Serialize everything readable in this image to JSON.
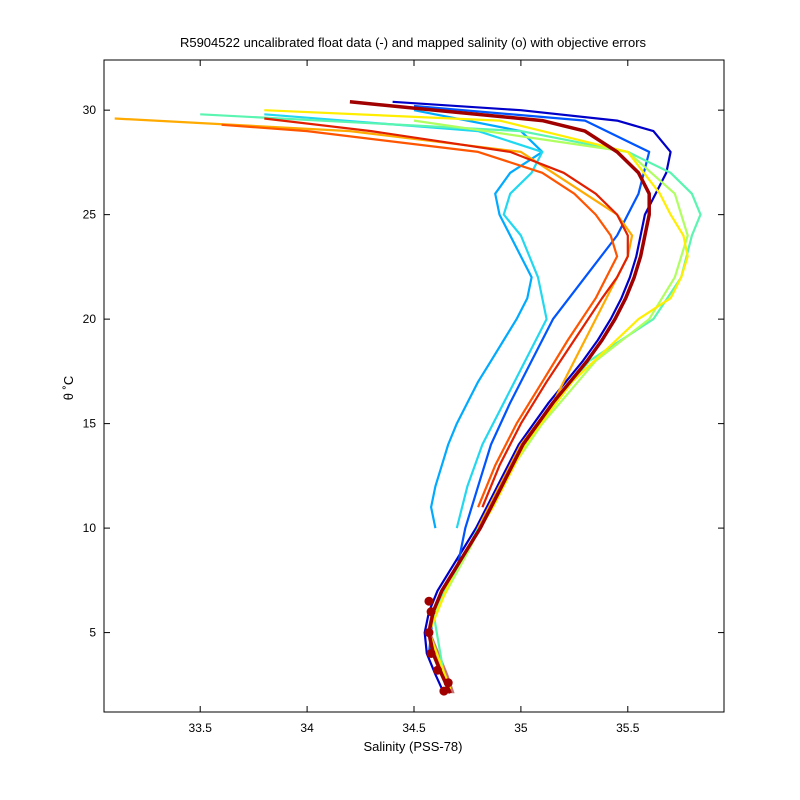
{
  "chart_data": {
    "type": "line",
    "title": "R5904522 uncalibrated float data (-) and mapped salinity (o) with objective errors",
    "xlabel": "Salinity (PSS-78)",
    "ylabel": "θ ˚C",
    "xlim": [
      33.05,
      35.95
    ],
    "ylim": [
      1.2,
      32.4
    ],
    "xticks": [
      33.5,
      34,
      34.5,
      35,
      35.5
    ],
    "yticks": [
      5,
      10,
      15,
      20,
      25,
      30
    ],
    "grid": false,
    "legend": "none",
    "colormap": [
      "#0000c8",
      "#0055ff",
      "#00aaff",
      "#22d8f0",
      "#5af5b0",
      "#b0ff60",
      "#ffee00",
      "#ffaa00",
      "#ff5500",
      "#e02000",
      "#a00000"
    ],
    "envelope": {
      "theta": [
        2.1,
        3.0,
        4.0,
        5.0,
        6.0,
        7.0,
        8.0,
        9.0,
        10.0,
        11.0,
        12.0,
        13.0,
        14.0,
        15.0,
        16.0,
        17.0,
        18.0,
        19.0,
        20.0,
        21.0,
        22.0,
        23.0,
        24.0,
        25.0,
        26.0,
        27.0,
        28.0,
        29.0,
        29.5,
        30.0,
        30.4
      ],
      "s_fresh": [
        34.66,
        34.62,
        34.58,
        34.56,
        34.58,
        34.62,
        34.68,
        34.74,
        34.8,
        34.85,
        34.9,
        34.95,
        35.0,
        35.07,
        35.14,
        35.22,
        35.3,
        35.37,
        35.43,
        35.48,
        35.52,
        35.55,
        35.57,
        35.59,
        35.6,
        35.6,
        35.58,
        35.55,
        35.5,
        35.4,
        35.3
      ],
      "s_salty": [
        34.69,
        34.66,
        34.62,
        34.58,
        34.58,
        34.62,
        34.68,
        34.74,
        34.8,
        34.85,
        34.9,
        34.95,
        35.0,
        35.07,
        35.14,
        35.22,
        35.3,
        35.37,
        35.43,
        35.48,
        35.52,
        35.55,
        35.57,
        35.59,
        35.6,
        35.6,
        35.58,
        35.55,
        35.5,
        35.4,
        35.3
      ]
    },
    "series": [
      {
        "color": "#0000c8",
        "theta": [
          2.1,
          3.0,
          4.0,
          5.0,
          6.0,
          7.0,
          8.0,
          9.0,
          10.0,
          11.0,
          12.0,
          13.0,
          14.0,
          15.0,
          16.0,
          17.0,
          18.0,
          19.0,
          20.0,
          21.0,
          22.0,
          23.0,
          24.0,
          25.0,
          26.0,
          27.0,
          28.0,
          29.0,
          29.5,
          30.0,
          30.4
        ],
        "salinity": [
          34.64,
          34.6,
          34.56,
          34.55,
          34.57,
          34.61,
          34.67,
          34.73,
          34.79,
          34.84,
          34.89,
          34.94,
          34.99,
          35.06,
          35.13,
          35.21,
          35.29,
          35.36,
          35.42,
          35.47,
          35.51,
          35.54,
          35.56,
          35.58,
          35.63,
          35.68,
          35.7,
          35.62,
          35.45,
          35.0,
          34.4
        ]
      },
      {
        "color": "#0055ff",
        "theta": [
          4.0,
          6.0,
          8.0,
          10.0,
          12.0,
          14.0,
          16.0,
          18.0,
          20.0,
          22.0,
          24.0,
          26.0,
          28.0,
          29.5,
          30.2
        ],
        "salinity": [
          34.57,
          34.59,
          34.7,
          34.74,
          34.8,
          34.86,
          34.95,
          35.05,
          35.15,
          35.3,
          35.45,
          35.55,
          35.6,
          35.3,
          34.5
        ]
      },
      {
        "color": "#00aaff",
        "theta": [
          10.0,
          11.0,
          12.0,
          13.0,
          14.0,
          15.0,
          16.0,
          17.0,
          18.0,
          19.0,
          20.0,
          21.0,
          22.0,
          23.0,
          24.0,
          25.0,
          26.0,
          27.0,
          28.0,
          29.0,
          30.0
        ],
        "salinity": [
          34.6,
          34.58,
          34.6,
          34.63,
          34.66,
          34.7,
          34.75,
          34.8,
          34.86,
          34.92,
          34.98,
          35.03,
          35.05,
          35.0,
          34.95,
          34.9,
          34.88,
          34.95,
          35.1,
          35.0,
          34.5
        ]
      },
      {
        "color": "#22d8f0",
        "theta": [
          10.0,
          12.0,
          14.0,
          16.0,
          18.0,
          20.0,
          22.0,
          24.0,
          25.0,
          26.0,
          27.0,
          28.0,
          29.0,
          29.8
        ],
        "salinity": [
          34.7,
          34.75,
          34.82,
          34.92,
          35.02,
          35.12,
          35.08,
          35.0,
          34.92,
          34.95,
          35.05,
          35.1,
          34.8,
          33.8
        ]
      },
      {
        "color": "#5af5b0",
        "theta": [
          3.0,
          6.0,
          9.0,
          12.0,
          15.0,
          18.0,
          20.0,
          22.0,
          24.0,
          25.0,
          26.0,
          27.0,
          28.0,
          29.0,
          29.8
        ],
        "salinity": [
          34.64,
          34.59,
          34.75,
          34.9,
          35.08,
          35.32,
          35.62,
          35.75,
          35.8,
          35.84,
          35.8,
          35.7,
          35.5,
          35.0,
          33.5
        ]
      },
      {
        "color": "#b0ff60",
        "theta": [
          6.0,
          9.0,
          12.0,
          15.0,
          18.0,
          20.0,
          22.0,
          24.0,
          26.0,
          28.0,
          29.5
        ],
        "salinity": [
          34.6,
          34.76,
          34.9,
          35.1,
          35.35,
          35.6,
          35.72,
          35.78,
          35.72,
          35.5,
          34.5
        ]
      },
      {
        "color": "#ffee00",
        "theta": [
          2.3,
          5.0,
          8.0,
          11.0,
          14.0,
          17.0,
          20.0,
          21.0,
          22.0,
          23.0,
          24.0,
          25.0,
          26.0,
          28.0,
          29.5,
          30.0
        ],
        "salinity": [
          34.67,
          34.57,
          34.69,
          34.87,
          35.02,
          35.24,
          35.55,
          35.7,
          35.75,
          35.78,
          35.76,
          35.7,
          35.65,
          35.5,
          34.9,
          33.8
        ]
      },
      {
        "color": "#ffaa00",
        "theta": [
          10.0,
          12.0,
          14.0,
          16.0,
          18.0,
          20.0,
          22.0,
          23.0,
          24.0,
          25.0,
          26.0,
          27.0,
          28.0,
          29.0,
          29.6
        ],
        "salinity": [
          34.8,
          34.9,
          35.0,
          35.15,
          35.25,
          35.35,
          35.45,
          35.5,
          35.52,
          35.45,
          35.3,
          35.15,
          35.0,
          34.2,
          33.1
        ]
      },
      {
        "color": "#ff5500",
        "theta": [
          11.0,
          13.0,
          15.0,
          17.0,
          19.0,
          21.0,
          22.0,
          23.0,
          24.0,
          25.0,
          26.0,
          27.0,
          28.0,
          29.0,
          29.3
        ],
        "salinity": [
          34.8,
          34.88,
          34.98,
          35.1,
          35.22,
          35.35,
          35.4,
          35.45,
          35.42,
          35.35,
          35.25,
          35.1,
          34.8,
          34.0,
          33.6
        ]
      },
      {
        "color": "#e02000",
        "theta": [
          11.0,
          13.0,
          15.0,
          17.0,
          19.0,
          21.0,
          22.0,
          23.0,
          24.0,
          25.0,
          26.0,
          27.0,
          28.0,
          29.0,
          29.6
        ],
        "salinity": [
          34.82,
          34.9,
          35.0,
          35.12,
          35.25,
          35.38,
          35.45,
          35.5,
          35.5,
          35.45,
          35.35,
          35.2,
          34.95,
          34.3,
          33.8
        ]
      },
      {
        "color": "#a00000",
        "theta": [
          2.1,
          3.0,
          4.0,
          5.0,
          6.0,
          7.0,
          8.0,
          9.0,
          10.0,
          11.0,
          12.0,
          13.0,
          14.0,
          15.0,
          16.0,
          17.0,
          18.0,
          19.0,
          20.0,
          21.0,
          22.0,
          23.0,
          24.0,
          25.0,
          26.0,
          27.0,
          28.0,
          29.0,
          29.5,
          30.0,
          30.4
        ],
        "salinity": [
          34.67,
          34.63,
          34.59,
          34.57,
          34.59,
          34.63,
          34.69,
          34.75,
          34.81,
          34.86,
          34.91,
          34.96,
          35.01,
          35.08,
          35.15,
          35.23,
          35.31,
          35.38,
          35.44,
          35.49,
          35.53,
          35.56,
          35.58,
          35.6,
          35.6,
          35.55,
          35.45,
          35.3,
          35.1,
          34.6,
          34.2
        ]
      }
    ],
    "mapped_points": {
      "color": "#a00000",
      "theta": [
        2.2,
        2.6,
        3.2,
        4.0,
        5.0,
        6.0,
        6.5
      ],
      "salinity": [
        34.64,
        34.66,
        34.61,
        34.58,
        34.57,
        34.58,
        34.57
      ]
    }
  }
}
